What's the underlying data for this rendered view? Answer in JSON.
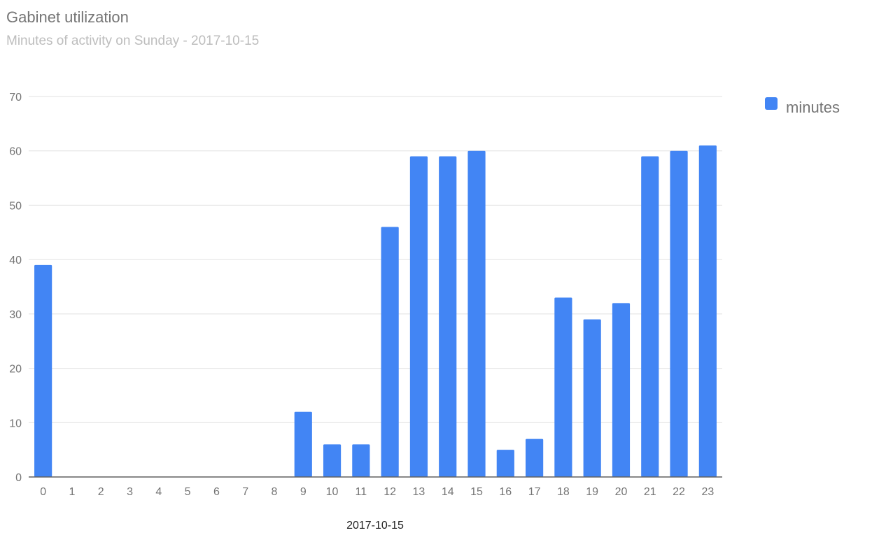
{
  "chart_data": {
    "type": "bar",
    "title": "Gabinet utilization",
    "subtitle": "Minutes of activity on Sunday - 2017-10-15",
    "xlabel": "2017-10-15",
    "ylabel": "",
    "categories": [
      "0",
      "1",
      "2",
      "3",
      "4",
      "5",
      "6",
      "7",
      "8",
      "9",
      "10",
      "11",
      "12",
      "13",
      "14",
      "15",
      "16",
      "17",
      "18",
      "19",
      "20",
      "21",
      "22",
      "23"
    ],
    "series": [
      {
        "name": "minutes",
        "color": "#4285f4",
        "values": [
          39,
          0,
          0,
          0,
          0,
          0,
          0,
          0,
          0,
          12,
          6,
          6,
          46,
          59,
          59,
          60,
          5,
          7,
          33,
          29,
          32,
          59,
          60,
          61
        ]
      }
    ],
    "ylim": [
      0,
      70
    ],
    "yticks": [
      0,
      10,
      20,
      30,
      40,
      50,
      60,
      70
    ],
    "grid": true,
    "legend": "right"
  }
}
